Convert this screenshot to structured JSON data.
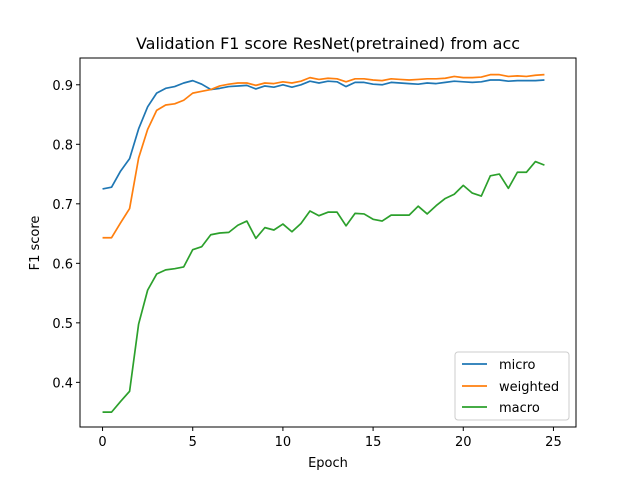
{
  "chart_data": {
    "type": "line",
    "title": "Validation F1 score ResNet(pretrained) from acc",
    "xlabel": "Epoch",
    "ylabel": "F1 score",
    "xlim": [
      -1.25,
      26.25
    ],
    "ylim": [
      0.325,
      0.945
    ],
    "xticks": [
      0,
      5,
      10,
      15,
      20,
      25
    ],
    "xtick_labels": [
      "0",
      "5",
      "10",
      "15",
      "20",
      "25"
    ],
    "yticks": [
      0.4,
      0.5,
      0.6,
      0.7,
      0.8,
      0.9
    ],
    "ytick_labels": [
      "0.4",
      "0.5",
      "0.6",
      "0.7",
      "0.8",
      "0.9"
    ],
    "grid": false,
    "legend_position": "lower-right",
    "x": [
      0,
      0.5,
      1,
      1.5,
      2,
      2.5,
      3,
      3.5,
      4,
      4.5,
      5,
      5.5,
      6,
      6.5,
      7,
      7.5,
      8,
      8.5,
      9,
      9.5,
      10,
      10.5,
      11,
      11.5,
      12,
      12.5,
      13,
      13.5,
      14,
      14.5,
      15,
      15.5,
      16,
      16.5,
      17,
      17.5,
      18,
      18.5,
      19,
      19.5,
      20,
      20.5,
      21,
      21.5,
      22,
      22.5,
      23,
      23.5,
      24,
      24.5
    ],
    "series": [
      {
        "name": "micro",
        "color": "#1f77b4",
        "values": [
          0.725,
          0.728,
          0.755,
          0.776,
          0.826,
          0.863,
          0.886,
          0.894,
          0.897,
          0.903,
          0.907,
          0.901,
          0.892,
          0.894,
          0.897,
          0.898,
          0.899,
          0.893,
          0.898,
          0.896,
          0.9,
          0.896,
          0.9,
          0.906,
          0.903,
          0.906,
          0.905,
          0.897,
          0.904,
          0.904,
          0.901,
          0.9,
          0.904,
          0.903,
          0.902,
          0.901,
          0.903,
          0.902,
          0.904,
          0.906,
          0.905,
          0.904,
          0.905,
          0.908,
          0.908,
          0.906,
          0.907,
          0.907,
          0.907,
          0.908
        ]
      },
      {
        "name": "weighted",
        "color": "#ff7f0e",
        "values": [
          0.643,
          0.643,
          0.668,
          0.692,
          0.777,
          0.825,
          0.857,
          0.866,
          0.868,
          0.874,
          0.886,
          0.889,
          0.892,
          0.898,
          0.901,
          0.903,
          0.903,
          0.899,
          0.903,
          0.902,
          0.905,
          0.903,
          0.906,
          0.912,
          0.909,
          0.911,
          0.91,
          0.905,
          0.91,
          0.91,
          0.908,
          0.907,
          0.91,
          0.909,
          0.908,
          0.909,
          0.91,
          0.91,
          0.911,
          0.914,
          0.912,
          0.912,
          0.913,
          0.917,
          0.917,
          0.914,
          0.915,
          0.914,
          0.916,
          0.917
        ]
      },
      {
        "name": "macro",
        "color": "#2ca02c",
        "values": [
          0.35,
          0.35,
          0.368,
          0.385,
          0.498,
          0.555,
          0.582,
          0.589,
          0.591,
          0.594,
          0.623,
          0.628,
          0.648,
          0.651,
          0.652,
          0.664,
          0.671,
          0.642,
          0.66,
          0.656,
          0.666,
          0.653,
          0.667,
          0.688,
          0.68,
          0.686,
          0.686,
          0.663,
          0.684,
          0.683,
          0.674,
          0.671,
          0.681,
          0.681,
          0.681,
          0.696,
          0.683,
          0.697,
          0.709,
          0.716,
          0.731,
          0.718,
          0.713,
          0.747,
          0.75,
          0.726,
          0.753,
          0.753,
          0.771,
          0.765
        ]
      }
    ]
  }
}
